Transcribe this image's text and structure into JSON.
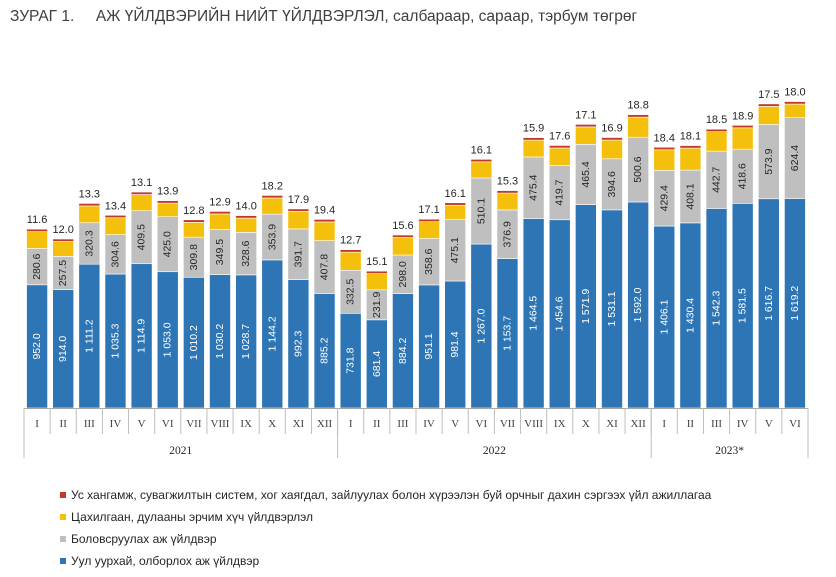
{
  "chart_data": {
    "type": "bar",
    "stacked": true,
    "title": "ЗУРАГ 1.     АЖ ҮЙЛДВЭРИЙН НИЙТ ҮЙЛДВЭРЛЭЛ, салбараар, сараар, тэрбум төгрөг",
    "categories": [
      "I",
      "II",
      "III",
      "IV",
      "V",
      "VI",
      "VII",
      "VIII",
      "IX",
      "X",
      "XI",
      "XII",
      "I",
      "II",
      "III",
      "IV",
      "V",
      "VI",
      "VII",
      "VIII",
      "IX",
      "X",
      "XI",
      "XII",
      "I",
      "II",
      "III",
      "IV",
      "V",
      "VI"
    ],
    "groups": [
      {
        "label": "2021",
        "count": 12
      },
      {
        "label": "2022",
        "count": 12
      },
      {
        "label": "2023*",
        "count": 6
      }
    ],
    "series": [
      {
        "name": "Уул уурхай, олборлох аж үйлдвэр",
        "color": "#2E75B6",
        "values": [
          952.0,
          914.0,
          1111.2,
          1035.3,
          1114.9,
          1053.0,
          1010.2,
          1030.2,
          1028.7,
          1144.2,
          992.3,
          885.2,
          731.8,
          681.4,
          884.2,
          951.1,
          981.4,
          1267.0,
          1153.7,
          1464.5,
          1454.6,
          1571.9,
          1531.1,
          1592.0,
          1406.1,
          1430.4,
          1542.3,
          1581.5,
          1616.7,
          1619.2
        ],
        "labels": [
          "952.0",
          "914.0",
          "1 111.2",
          "1 035.3",
          "1 114.9",
          "1 053.0",
          "1 010.2",
          "1 030.2",
          "1 028.7",
          "1 144.2",
          "992.3",
          "885.2",
          "731.8",
          "681.4",
          "884.2",
          "951.1",
          "981.4",
          "1 267.0",
          "1 153.7",
          "1 464.5",
          "1 454.6",
          "1 571.9",
          "1 531.1",
          "1 592.0",
          "1 406.1",
          "1 430.4",
          "1 542.3",
          "1 581.5",
          "1 616.7",
          "1 619.2"
        ]
      },
      {
        "name": "Боловсруулах аж үйлдвэр",
        "color": "#BFBFBF",
        "values": [
          280.6,
          257.5,
          320.3,
          304.6,
          409.5,
          425.0,
          309.8,
          349.5,
          328.6,
          353.9,
          391.7,
          407.8,
          332.5,
          231.9,
          298.0,
          358.6,
          475.1,
          510.1,
          376.9,
          475.4,
          419.7,
          465.4,
          394.6,
          500.6,
          429.4,
          408.1,
          442.7,
          418.6,
          573.9,
          624.4
        ],
        "labels": [
          "280.6",
          "257.5",
          "320.3",
          "304.6",
          "409.5",
          "425.0",
          "309.8",
          "349.5",
          "328.6",
          "353.9",
          "391.7",
          "407.8",
          "332.5",
          "231.9",
          "298.0",
          "358.6",
          "475.1",
          "510.1",
          "376.9",
          "475.4",
          "419.7",
          "465.4",
          "394.6",
          "500.6",
          "429.4",
          "408.1",
          "442.7",
          "418.6",
          "573.9",
          "624.4"
        ]
      },
      {
        "name": "Цахилгаан, дулааны эрчим хүч үйлдвэрлэл",
        "color": "#F5C00C",
        "values": [
          130,
          115,
          130,
          130,
          125,
          105,
          115,
          120,
          110,
          125,
          135,
          145,
          140,
          125,
          135,
          130,
          110,
          125,
          130,
          130,
          135,
          135,
          145,
          155,
          160,
          170,
          150,
          165,
          140,
          105
        ],
        "labels": []
      },
      {
        "name": "Ус хангамж, сувагжилтын систем, хог хаягдал, зайлуулах болон хүрээлэн буй орчныг дахин сэргээх үйл ажиллагаа",
        "color": "#C0392B",
        "values": [
          11.6,
          12.0,
          13.3,
          13.4,
          13.1,
          13.9,
          12.8,
          12.9,
          14.0,
          18.2,
          17.9,
          19.4,
          12.7,
          15.1,
          15.6,
          17.1,
          16.1,
          16.1,
          15.3,
          15.9,
          17.6,
          17.1,
          16.9,
          18.8,
          18.4,
          18.1,
          18.5,
          18.9,
          17.5,
          18.0
        ],
        "labels": [
          "11.6",
          "12.0",
          "13.3",
          "13.4",
          "13.1",
          "13.9",
          "12.8",
          "12.9",
          "14.0",
          "18.2",
          "17.9",
          "19.4",
          "12.7",
          "15.1",
          "15.6",
          "17.1",
          "16.1",
          "16.1",
          "15.3",
          "15.9",
          "17.6",
          "17.1",
          "16.9",
          "18.8",
          "18.4",
          "18.1",
          "18.5",
          "18.9",
          "17.5",
          "18.0"
        ]
      }
    ],
    "legend_position": "bottom-left",
    "legend_order": [
      3,
      2,
      1,
      0
    ],
    "grid": false
  }
}
